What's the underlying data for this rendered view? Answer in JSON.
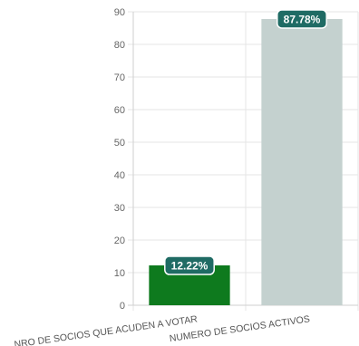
{
  "chart_data": {
    "type": "bar",
    "categories": [
      "NRO DE SOCIOS QUE ACUDEN A VOTAR",
      "NUMERO DE SOCIOS ACTIVOS"
    ],
    "values": [
      12.22,
      87.78
    ],
    "data_labels": [
      "12.22%",
      "87.78%"
    ],
    "colors": [
      "#0e7a1e",
      "#c4d1cf"
    ],
    "label_color": "#1f6b64",
    "ylim": [
      0,
      90
    ],
    "yticks": [
      0,
      10,
      20,
      30,
      40,
      50,
      60,
      70,
      80,
      90
    ],
    "grid": true,
    "title": "",
    "xlabel": "",
    "ylabel": ""
  }
}
